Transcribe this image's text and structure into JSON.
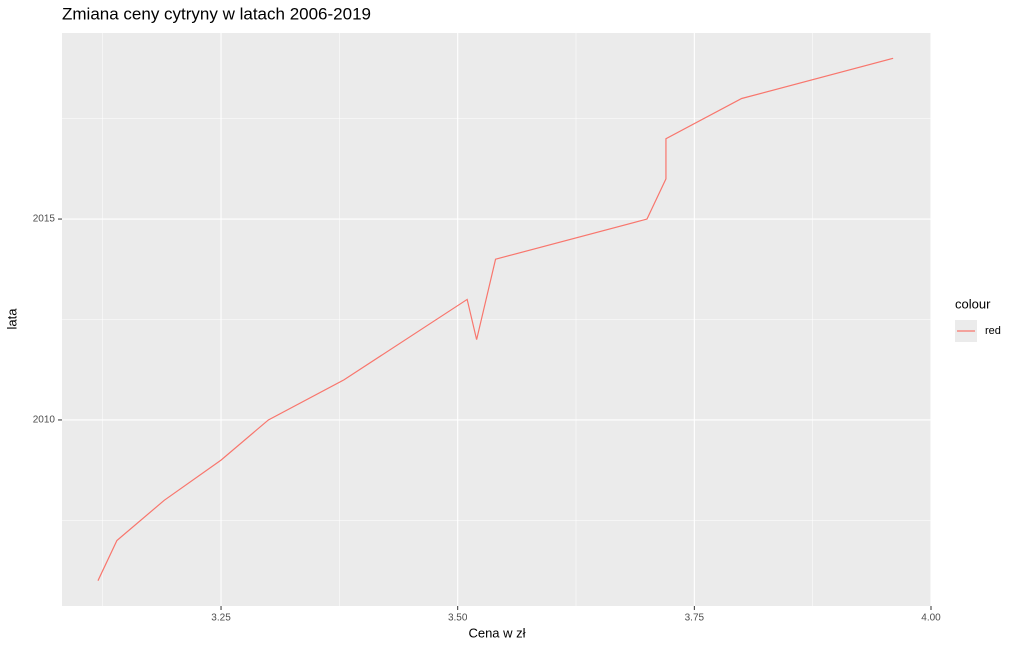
{
  "chart_data": {
    "type": "line",
    "title": "Zmiana ceny cytryny w latach 2006-2019",
    "x_label": "Cena w zł",
    "y_label": "lata",
    "legend_title": "colour",
    "series": [
      {
        "name": "red",
        "color": "#F8766D",
        "x": [
          3.12,
          3.14,
          3.19,
          3.25,
          3.3,
          3.38,
          3.51,
          3.52,
          3.54,
          3.7,
          3.72,
          3.72,
          3.8,
          3.96
        ],
        "values": [
          2006,
          2007,
          2008,
          2009,
          2010,
          2011,
          2013,
          2012,
          2014,
          2015,
          2016,
          2017,
          2018,
          2019
        ]
      }
    ],
    "xlim": [
      3.082,
      4.0
    ],
    "ylim": [
      2005.37,
      2019.63
    ],
    "xticks": [
      {
        "value": 3.25,
        "label": "3.25"
      },
      {
        "value": 3.5,
        "label": "3.50"
      },
      {
        "value": 3.75,
        "label": "3.75"
      },
      {
        "value": 4.0,
        "label": "4.00"
      }
    ],
    "yticks": [
      2010,
      2015
    ],
    "grid": true
  }
}
